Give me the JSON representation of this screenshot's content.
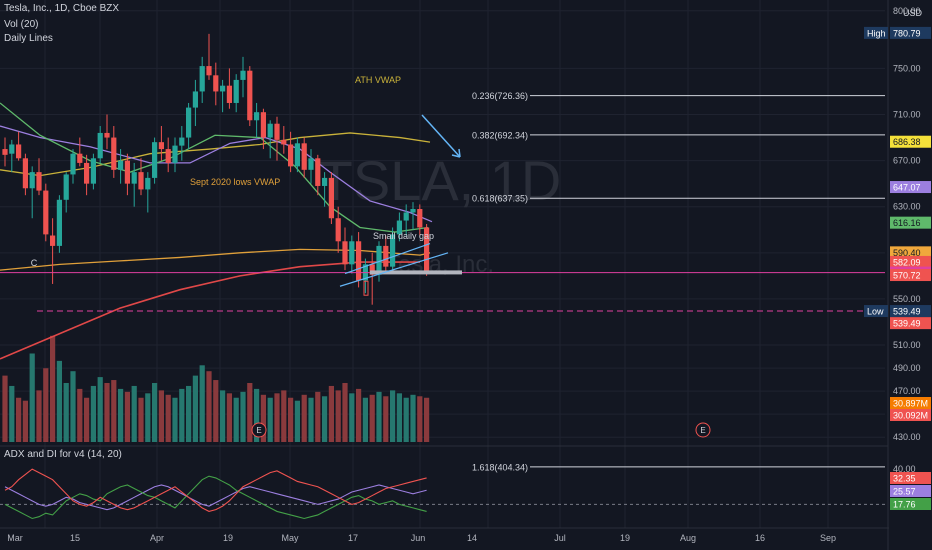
{
  "header": {
    "symbol_line": "Tesla, Inc., 1D, Cboe BZX",
    "vol_line": "Vol (20)",
    "lines_line": "Daily Lines",
    "adx_line": "ADX and DI for v4 (14, 20)",
    "currency": "USD"
  },
  "watermark": {
    "ticker": "TSLA, 1D",
    "name": "Tesla, Inc."
  },
  "annotations": {
    "ath_vwap": "ATH VWAP",
    "sept_vwap": "Sept 2020 lows VWAP",
    "small_gap": "Small daily gap",
    "wave_c": "C",
    "earnings": "E"
  },
  "fib_levels": [
    {
      "label": "0.236(726.36)",
      "price": 726.36
    },
    {
      "label": "0.382(692.34)",
      "price": 692.34
    },
    {
      "label": "0.618(637.35)",
      "price": 637.35
    },
    {
      "label": "1.618(404.34)",
      "price": 404.34
    }
  ],
  "price_axis": {
    "ticks": [
      "800.00",
      "750.00",
      "710.00",
      "670.00",
      "630.00",
      "590.00",
      "550.00",
      "510.00",
      "490.00",
      "470.00",
      "450.00",
      "430.00"
    ],
    "tick_values": [
      800,
      750,
      710,
      670,
      630,
      590,
      550,
      510,
      490,
      470,
      450,
      430
    ]
  },
  "price_labels": [
    {
      "text": "High",
      "value": "780.79",
      "bg": "#1e3a5f",
      "fg": "#ffffff",
      "price": 780.79,
      "tag": true
    },
    {
      "text": "",
      "value": "686.38",
      "bg": "#f5e13a",
      "fg": "#131722",
      "price": 686.38
    },
    {
      "text": "",
      "value": "647.07",
      "bg": "#9c7fe0",
      "fg": "#ffffff",
      "price": 647.07
    },
    {
      "text": "",
      "value": "616.16",
      "bg": "#5fb96b",
      "fg": "#131722",
      "price": 616.16
    },
    {
      "text": "",
      "value": "590.40",
      "bg": "#f0a83c",
      "fg": "#131722",
      "price": 590.4
    },
    {
      "text": "",
      "value": "582.09",
      "bg": "#ef5350",
      "fg": "#ffffff",
      "price": 582.09
    },
    {
      "text": "",
      "value": "572.84",
      "bg": "#e040a0",
      "fg": "#ffffff",
      "price": 572.84
    },
    {
      "text": "",
      "value": "570.72",
      "bg": "#ef5350",
      "fg": "#ffffff",
      "price": 570.72
    },
    {
      "text": "Low",
      "value": "539.49",
      "bg": "#1e3a5f",
      "fg": "#ffffff",
      "price": 539.49,
      "tag": true
    },
    {
      "text": "",
      "value": "539.49",
      "bg": "#ef5350",
      "fg": "#ffffff",
      "price": 529.0
    }
  ],
  "volume_labels": [
    {
      "value": "30.897M",
      "bg": "#f57c00",
      "fg": "#ffffff"
    },
    {
      "value": "30.092M",
      "bg": "#ef5350",
      "fg": "#ffffff"
    }
  ],
  "adx_axis": {
    "ticks": [
      "40.00",
      "20.00"
    ],
    "tick_values": [
      40,
      20
    ]
  },
  "adx_labels": [
    {
      "value": "32.35",
      "bg": "#ef5350",
      "fg": "#ffffff"
    },
    {
      "value": "25.57",
      "bg": "#9c7fe0",
      "fg": "#ffffff"
    },
    {
      "value": "17.76",
      "bg": "#43a047",
      "fg": "#ffffff"
    }
  ],
  "time_axis": {
    "labels": [
      "Mar",
      "15",
      "Apr",
      "19",
      "May",
      "17",
      "Jun",
      "14",
      "Jul",
      "19",
      "Aug",
      "16",
      "Sep"
    ]
  },
  "colors": {
    "up": "#26a69a",
    "down": "#ef5350",
    "vol_up": "#26786f",
    "vol_down": "#8a3a3d",
    "grid": "#1f2330",
    "ath_vwap": "#c9b23a",
    "sept_vwap": "#e0a03a",
    "ma_fast": "#5fb96b",
    "ma_mid": "#9c7fe0",
    "ma_red": "#e04848",
    "fib": "#d1d4dc",
    "arrow": "#64b5f6"
  },
  "chart_data": {
    "type": "candlestick",
    "candles": [
      [
        680,
        690,
        665,
        675
      ],
      [
        676,
        688,
        660,
        684
      ],
      [
        684,
        695,
        670,
        672
      ],
      [
        672,
        676,
        640,
        646
      ],
      [
        646,
        665,
        620,
        660
      ],
      [
        660,
        672,
        640,
        644
      ],
      [
        644,
        650,
        600,
        606
      ],
      [
        605,
        620,
        563,
        596
      ],
      [
        596,
        640,
        590,
        636
      ],
      [
        636,
        660,
        625,
        658
      ],
      [
        658,
        680,
        650,
        676
      ],
      [
        676,
        690,
        665,
        668
      ],
      [
        668,
        675,
        640,
        650
      ],
      [
        650,
        676,
        645,
        672
      ],
      [
        672,
        700,
        668,
        694
      ],
      [
        694,
        710,
        680,
        690
      ],
      [
        690,
        700,
        655,
        662
      ],
      [
        662,
        680,
        650,
        670
      ],
      [
        670,
        676,
        640,
        650
      ],
      [
        650,
        668,
        630,
        660
      ],
      [
        660,
        672,
        640,
        645
      ],
      [
        645,
        660,
        625,
        655
      ],
      [
        655,
        690,
        650,
        686
      ],
      [
        686,
        700,
        670,
        680
      ],
      [
        680,
        690,
        660,
        668
      ],
      [
        668,
        690,
        660,
        683
      ],
      [
        683,
        700,
        670,
        690
      ],
      [
        690,
        720,
        680,
        716
      ],
      [
        716,
        740,
        700,
        730
      ],
      [
        730,
        760,
        720,
        752
      ],
      [
        752,
        780,
        740,
        744
      ],
      [
        744,
        755,
        718,
        730
      ],
      [
        730,
        740,
        712,
        735
      ],
      [
        735,
        750,
        715,
        720
      ],
      [
        720,
        745,
        712,
        740
      ],
      [
        740,
        760,
        725,
        748
      ],
      [
        748,
        752,
        700,
        705
      ],
      [
        705,
        720,
        690,
        712
      ],
      [
        712,
        715,
        680,
        690
      ],
      [
        690,
        705,
        672,
        702
      ],
      [
        702,
        708,
        670,
        688
      ],
      [
        688,
        700,
        676,
        684
      ],
      [
        684,
        695,
        660,
        665
      ],
      [
        665,
        690,
        660,
        685
      ],
      [
        685,
        690,
        655,
        662
      ],
      [
        662,
        680,
        650,
        672
      ],
      [
        672,
        675,
        640,
        648
      ],
      [
        648,
        660,
        630,
        655
      ],
      [
        655,
        660,
        615,
        620
      ],
      [
        620,
        630,
        590,
        600
      ],
      [
        600,
        612,
        575,
        580
      ],
      [
        580,
        605,
        572,
        600
      ],
      [
        600,
        608,
        560,
        566
      ],
      [
        566,
        585,
        555,
        580
      ],
      [
        580,
        590,
        545,
        571
      ],
      [
        571,
        600,
        565,
        596
      ],
      [
        596,
        605,
        572,
        578
      ],
      [
        578,
        612,
        575,
        606
      ],
      [
        606,
        625,
        600,
        618
      ],
      [
        618,
        632,
        605,
        625
      ],
      [
        625,
        634,
        610,
        628
      ],
      [
        628,
        632,
        605,
        612
      ],
      [
        612,
        615,
        570,
        572
      ]
    ],
    "volumes": [
      45,
      38,
      30,
      28,
      60,
      35,
      50,
      72,
      55,
      40,
      48,
      36,
      30,
      38,
      44,
      40,
      42,
      36,
      34,
      38,
      30,
      33,
      40,
      35,
      32,
      30,
      36,
      38,
      45,
      52,
      48,
      42,
      35,
      33,
      30,
      34,
      40,
      36,
      32,
      30,
      33,
      35,
      30,
      28,
      32,
      30,
      34,
      31,
      38,
      35,
      40,
      33,
      36,
      30,
      32,
      34,
      31,
      35,
      33,
      30,
      32,
      31,
      30
    ],
    "vol_ylim": [
      0,
      80
    ],
    "price_ylim": [
      425,
      805
    ],
    "adx_ylim": [
      10,
      48
    ],
    "adx": [
      30,
      28,
      26,
      24,
      22,
      20,
      19,
      20,
      22,
      24,
      23,
      21,
      20,
      19,
      18,
      17,
      18,
      20,
      22,
      24,
      26,
      28,
      30,
      31,
      30,
      28,
      26,
      24,
      22,
      20,
      19,
      21,
      23,
      25,
      27,
      29,
      30,
      29,
      28,
      27,
      26,
      25,
      24,
      23,
      22,
      21,
      20,
      21,
      22,
      23,
      25,
      27,
      28,
      29,
      30,
      31,
      30,
      29,
      28,
      27,
      26,
      27,
      28
    ],
    "di_plus": [
      20,
      18,
      16,
      14,
      12,
      13,
      15,
      14,
      18,
      22,
      24,
      26,
      25,
      23,
      22,
      26,
      28,
      30,
      31,
      29,
      27,
      25,
      24,
      22,
      20,
      18,
      22,
      26,
      30,
      34,
      36,
      35,
      33,
      31,
      28,
      26,
      24,
      22,
      20,
      18,
      16,
      15,
      14,
      13,
      12,
      13,
      14,
      16,
      18,
      20,
      22,
      24,
      25,
      23,
      22,
      20,
      21,
      22,
      20,
      19,
      18,
      17,
      16
    ],
    "di_minus": [
      28,
      30,
      34,
      37,
      40,
      38,
      36,
      34,
      30,
      26,
      22,
      20,
      19,
      21,
      24,
      22,
      20,
      18,
      17,
      18,
      20,
      22,
      24,
      26,
      28,
      30,
      27,
      24,
      21,
      18,
      16,
      17,
      19,
      22,
      26,
      30,
      32,
      34,
      36,
      38,
      39,
      37,
      35,
      33,
      32,
      31,
      30,
      28,
      26,
      24,
      22,
      20,
      21,
      23,
      25,
      27,
      29,
      30,
      31,
      32,
      33,
      34,
      35
    ],
    "adx_threshold": 20
  }
}
